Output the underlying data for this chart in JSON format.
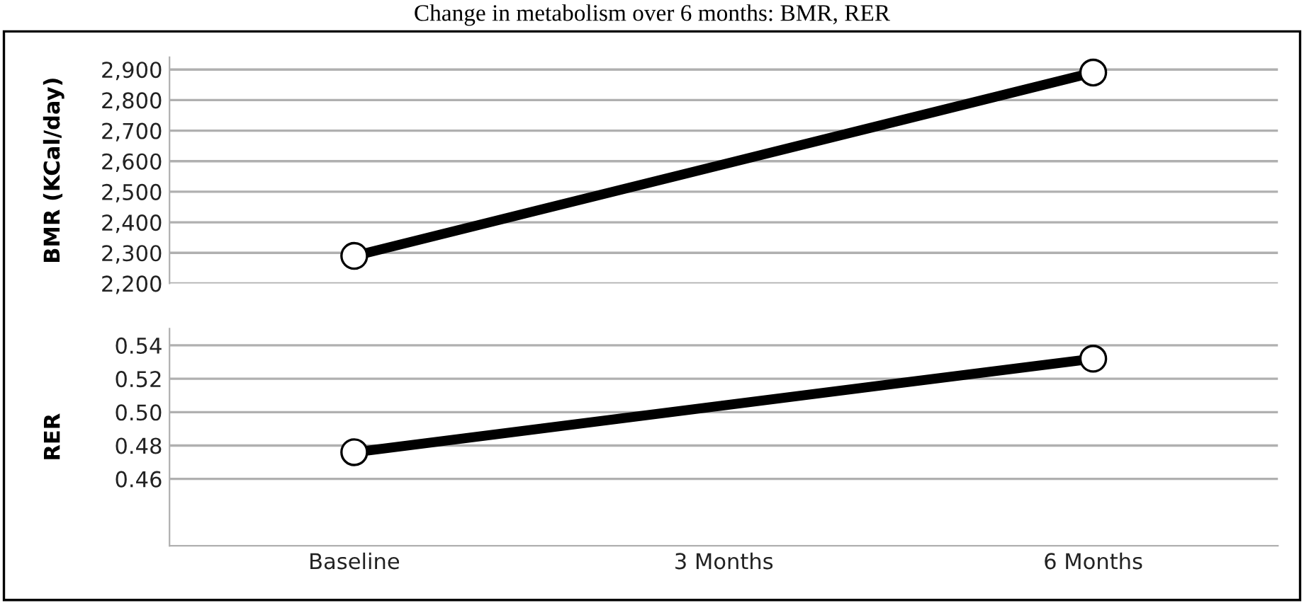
{
  "chart_data": [
    {
      "type": "line",
      "title": "Change in metabolism over 6 months: BMR, RER",
      "ylabel": "BMR (KCal/day)",
      "categories": [
        null,
        null,
        null
      ],
      "series": [
        {
          "color": "#000000",
          "values": [
            2290,
            null,
            2890
          ]
        }
      ],
      "ylim": [
        2200,
        2940
      ],
      "yticks": [
        {
          "value": 2200,
          "label": "2,200"
        },
        {
          "value": 2300,
          "label": "2,300"
        },
        {
          "value": 2400,
          "label": "2,400"
        },
        {
          "value": 2500,
          "label": "2,500"
        },
        {
          "value": 2600,
          "label": "2,600"
        },
        {
          "value": 2700,
          "label": "2,700"
        },
        {
          "value": 2800,
          "label": "2,800"
        },
        {
          "value": 2900,
          "label": "2,900"
        }
      ],
      "grid": "y",
      "marker": "circle",
      "line_style": "solid",
      "tick_labels": "y"
    },
    {
      "type": "line",
      "ylabel": "RER",
      "categories": [
        "Baseline",
        "3 Months",
        "6 Months"
      ],
      "series": [
        {
          "color": "#000000",
          "values": [
            0.476,
            null,
            0.532
          ]
        }
      ],
      "ylim": [
        0.42,
        0.55
      ],
      "yticks": [
        0.46,
        0.48,
        {
          "value": 0.5,
          "label": "0.50"
        },
        0.52,
        0.54
      ],
      "grid": "y",
      "marker": "circle",
      "line_style": "solid"
    }
  ]
}
